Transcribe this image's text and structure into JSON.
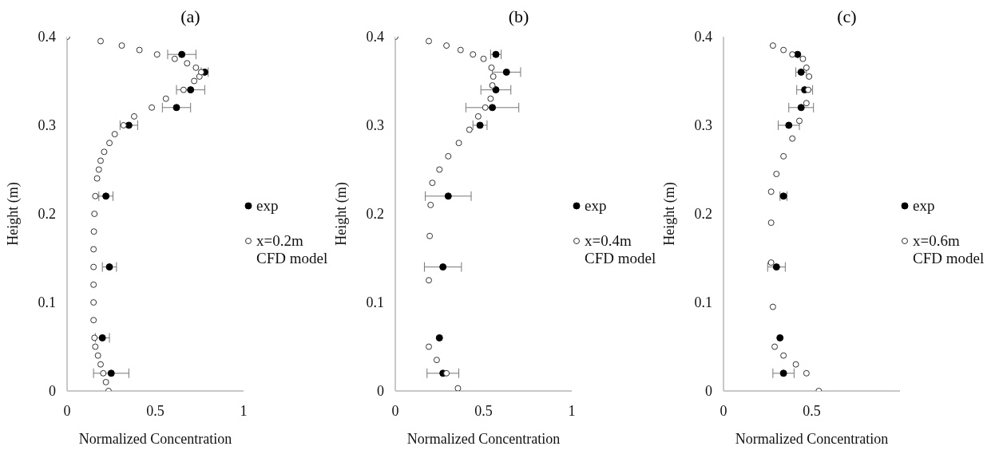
{
  "chart_data": [
    {
      "type": "scatter",
      "title": "(a)",
      "xlabel": "Normalized Concentration",
      "ylabel": "Height (m)",
      "xlim": [
        0,
        1
      ],
      "xticks": [
        0,
        0.5,
        1
      ],
      "ylim": [
        0,
        0.4
      ],
      "yticks": [
        0,
        0.1,
        0.2,
        0.3,
        0.4
      ],
      "grid": false,
      "legend": "right",
      "marker": "circle",
      "series": [
        {
          "name": "exp",
          "color": "#000000",
          "x": [
            0.65,
            0.78,
            0.7,
            0.62,
            0.35,
            0.22,
            0.24,
            0.2,
            0.25
          ],
          "values": [
            0.38,
            0.36,
            0.34,
            0.32,
            0.3,
            0.22,
            0.14,
            0.06,
            0.02
          ],
          "xerrors": [
            0.08,
            0.02,
            0.08,
            0.08,
            0.05,
            0.04,
            0.04,
            0.04,
            0.1
          ]
        },
        {
          "name": "x=0.2m CFD model",
          "color": "#333333",
          "x": [
            0.235,
            0.22,
            0.205,
            0.19,
            0.175,
            0.16,
            0.155,
            0.15,
            0.15,
            0.15,
            0.15,
            0.15,
            0.152,
            0.155,
            0.16,
            0.17,
            0.18,
            0.19,
            0.21,
            0.24,
            0.27,
            0.32,
            0.38,
            0.48,
            0.56,
            0.66,
            0.72,
            0.75,
            0.76,
            0.73,
            0.68,
            0.61,
            0.51,
            0.41,
            0.31,
            0.19,
            0
          ],
          "values": [
            0,
            0.01,
            0.02,
            0.03,
            0.04,
            0.05,
            0.06,
            0.08,
            0.1,
            0.12,
            0.14,
            0.16,
            0.18,
            0.2,
            0.22,
            0.24,
            0.25,
            0.26,
            0.27,
            0.28,
            0.29,
            0.3,
            0.31,
            0.32,
            0.33,
            0.34,
            0.35,
            0.355,
            0.36,
            0.365,
            0.37,
            0.375,
            0.38,
            0.385,
            0.39,
            0.395,
            0.4
          ]
        }
      ]
    },
    {
      "type": "scatter",
      "title": "(b)",
      "xlabel": "Normalized Concentration",
      "ylabel": "Height (m)",
      "xlim": [
        0,
        1
      ],
      "xticks": [
        0,
        0.5,
        1
      ],
      "ylim": [
        0,
        0.4
      ],
      "yticks": [
        0,
        0.1,
        0.2,
        0.3,
        0.4
      ],
      "grid": false,
      "legend": "right",
      "marker": "circle",
      "series": [
        {
          "name": "exp",
          "color": "#000000",
          "x": [
            0.57,
            0.63,
            0.57,
            0.55,
            0.48,
            0.3,
            0.27,
            0.25,
            0.27
          ],
          "values": [
            0.38,
            0.36,
            0.34,
            0.32,
            0.3,
            0.22,
            0.14,
            0.06,
            0.02
          ],
          "xerrors": [
            0.03,
            0.08,
            0.085,
            0.15,
            0.04,
            0.13,
            0.105,
            null,
            0.09
          ]
        },
        {
          "name": "x=0.4m CFD model",
          "color": "#333333",
          "x": [
            0.355,
            0.29,
            0.235,
            0.19,
            0.19,
            0.195,
            0.2,
            0.21,
            0.25,
            0.3,
            0.36,
            0.42,
            0.47,
            0.51,
            0.54,
            0.55,
            0.555,
            0.545,
            0.5,
            0.44,
            0.37,
            0.29,
            0.19,
            0
          ],
          "values": [
            0.003,
            0.02,
            0.035,
            0.05,
            0.125,
            0.175,
            0.21,
            0.235,
            0.25,
            0.265,
            0.28,
            0.295,
            0.31,
            0.32,
            0.33,
            0.345,
            0.355,
            0.365,
            0.375,
            0.38,
            0.385,
            0.39,
            0.395,
            0.4
          ]
        }
      ]
    },
    {
      "type": "scatter",
      "title": "(c)",
      "xlabel": "Normalized Concentration",
      "ylabel": "Height (m)",
      "xlim": [
        0,
        1
      ],
      "xticks": [
        0,
        0.5
      ],
      "ylim": [
        0,
        0.4
      ],
      "yticks": [
        0,
        0.1,
        0.2,
        0.3,
        0.4
      ],
      "grid": false,
      "legend": "right",
      "marker": "circle",
      "series": [
        {
          "name": "exp",
          "color": "#000000",
          "x": [
            0.42,
            0.44,
            0.46,
            0.44,
            0.37,
            0.34,
            0.3,
            0.32,
            0.34
          ],
          "values": [
            0.38,
            0.36,
            0.34,
            0.32,
            0.3,
            0.22,
            0.14,
            0.06,
            0.02
          ],
          "xerrors": [
            null,
            0.03,
            0.045,
            0.07,
            0.06,
            0.02,
            0.05,
            null,
            0.06
          ]
        },
        {
          "name": "x=0.6m CFD model",
          "color": "#333333",
          "x": [
            0.54,
            0.47,
            0.41,
            0.34,
            0.29,
            0.28,
            0.27,
            0.27,
            0.27,
            0.3,
            0.34,
            0.39,
            0.43,
            0.47,
            0.48,
            0.485,
            0.47,
            0.45,
            0.39,
            0.34,
            0.28
          ],
          "values": [
            0,
            0.02,
            0.03,
            0.04,
            0.05,
            0.095,
            0.145,
            0.19,
            0.225,
            0.245,
            0.265,
            0.285,
            0.305,
            0.325,
            0.34,
            0.355,
            0.365,
            0.375,
            0.38,
            0.385,
            0.39
          ]
        }
      ]
    }
  ]
}
